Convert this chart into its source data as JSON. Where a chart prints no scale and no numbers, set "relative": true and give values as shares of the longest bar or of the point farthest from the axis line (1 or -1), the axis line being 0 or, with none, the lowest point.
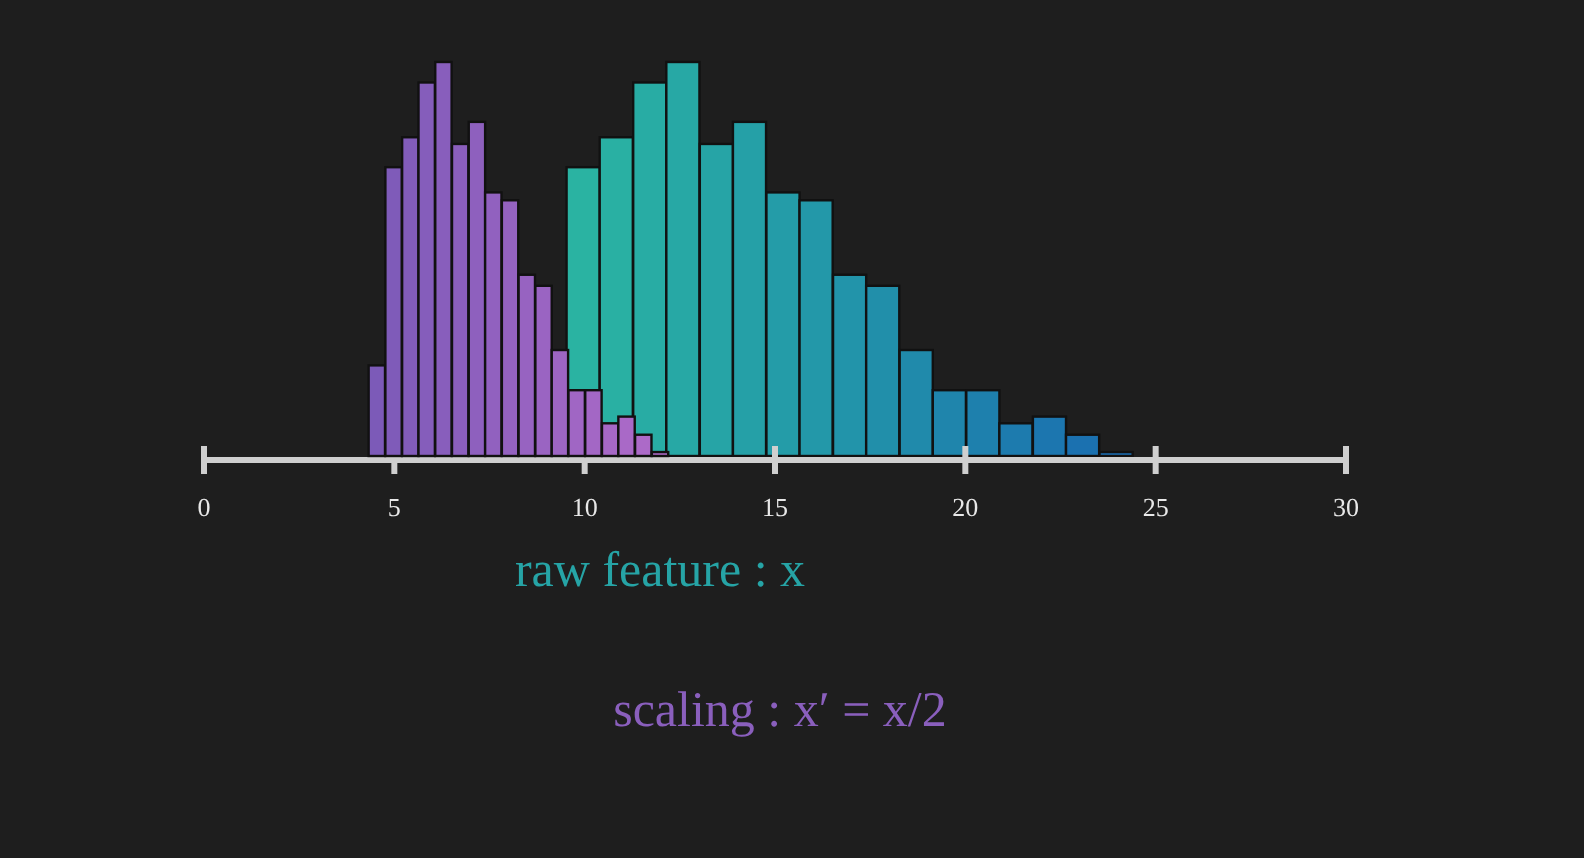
{
  "chart_data": [
    {
      "type": "bar",
      "relative": true,
      "xlim": [
        0,
        30
      ],
      "xticks": [
        0,
        5,
        10,
        15,
        20,
        25,
        30
      ],
      "tick_labels": "x",
      "xlabel": "raw feature : x",
      "color": "#26a4a6",
      "x": [
        9.96,
        10.83,
        11.71,
        12.58,
        13.46,
        14.33,
        15.21,
        16.08,
        16.96,
        17.83,
        18.71,
        19.58,
        20.46,
        21.33,
        22.21,
        23.08,
        23.96
      ],
      "values": [
        0.733,
        0.809,
        0.948,
        1,
        0.792,
        0.848,
        0.669,
        0.649,
        0.46,
        0.432,
        0.269,
        0.167,
        0.167,
        0.083,
        0.1,
        0.054,
        0.01
      ],
      "colors": [
        "#2ab3a2",
        "#29b0a3",
        "#28aca4",
        "#27a8a5",
        "#26a4a6",
        "#25a0a7",
        "#249ca8",
        "#2398a9",
        "#2294aa",
        "#218faa",
        "#208aab",
        "#1f85ac",
        "#1e80ad",
        "#1d7bae",
        "#1c76af",
        "#1b71b0",
        "#1a6cb1"
      ]
    },
    {
      "type": "bar",
      "relative": true,
      "xlim": [
        0,
        30
      ],
      "xticks": [
        0,
        5,
        10,
        15,
        20,
        25,
        30
      ],
      "tick_labels": false,
      "xlabel": "scaling : x′ = x/2",
      "color": "#8a5fbd",
      "x": [
        4.54,
        4.98,
        5.42,
        5.85,
        6.29,
        6.73,
        7.17,
        7.6,
        8.04,
        8.48,
        8.92,
        9.35,
        9.79,
        10.23,
        10.67,
        11.1,
        11.54,
        11.98
      ],
      "values": [
        0.23,
        0.733,
        0.809,
        0.948,
        1,
        0.792,
        0.848,
        0.669,
        0.649,
        0.46,
        0.432,
        0.269,
        0.167,
        0.167,
        0.083,
        0.1,
        0.054,
        0.01
      ],
      "colors": [
        "#7c5ab8",
        "#7f5bb9",
        "#825cba",
        "#855dbb",
        "#885ebc",
        "#8b5fbd",
        "#8e60be",
        "#9161bf",
        "#9462c0",
        "#9763c1",
        "#9a64c2",
        "#9d65c3",
        "#a066c4",
        "#a367c5",
        "#a668c6",
        "#a969c7",
        "#ac6ac8",
        "#af6bc9"
      ]
    }
  ]
}
